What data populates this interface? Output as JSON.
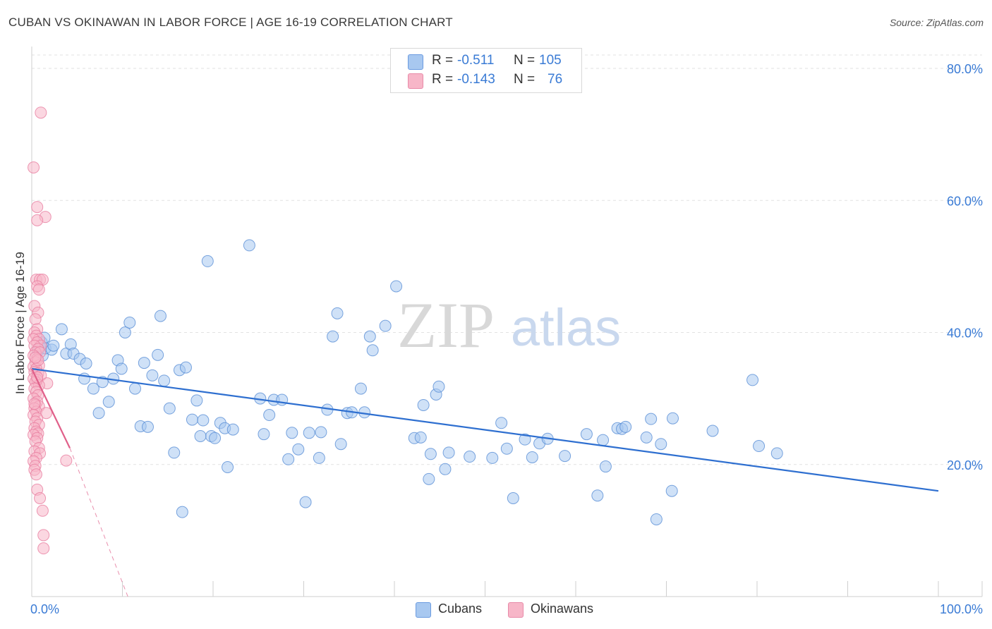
{
  "header": {
    "title": "CUBAN VS OKINAWAN IN LABOR FORCE | AGE 16-19 CORRELATION CHART",
    "source": "Source: ZipAtlas.com"
  },
  "watermark": {
    "zip": "ZIP",
    "atlas": "atlas"
  },
  "legend": {
    "rows": [
      {
        "r_label": "R =",
        "r_value": "-0.511",
        "n_label": "N =",
        "n_value": "105",
        "color": "#a8c8f0"
      },
      {
        "r_label": "R =",
        "r_value": "-0.143",
        "n_label": "N =",
        "n_value": "76",
        "color": "#f7b6c8"
      }
    ]
  },
  "bottom_legend": [
    {
      "label": "Cubans",
      "color": "#a8c8f0"
    },
    {
      "label": "Okinawans",
      "color": "#f7b6c8"
    }
  ],
  "chart_data": {
    "type": "scatter",
    "title": "CUBAN VS OKINAWAN IN LABOR FORCE | AGE 16-19 CORRELATION CHART",
    "xlabel": "",
    "ylabel": "In Labor Force | Age 16-19",
    "xlim": [
      0,
      100
    ],
    "ylim": [
      0,
      82
    ],
    "x_tick_labels": [
      "0.0%",
      "100.0%"
    ],
    "y_ticks": [
      20,
      40,
      60,
      80
    ],
    "y_tick_labels": [
      "20.0%",
      "40.0%",
      "60.0%",
      "80.0%"
    ],
    "grid": true,
    "series": [
      {
        "name": "Cubans",
        "color": "#a8c8f0",
        "stroke": "#5a8fd6",
        "line_color": "#2e6fd0",
        "trend": {
          "x": [
            0,
            100
          ],
          "y": [
            34.5,
            16.0
          ]
        },
        "points": [
          [
            0.7,
            37.2
          ],
          [
            0.9,
            37.8
          ],
          [
            1.1,
            38.5
          ],
          [
            1.2,
            36.5
          ],
          [
            1.4,
            39.2
          ],
          [
            1.5,
            37.6
          ],
          [
            2.2,
            37.4
          ],
          [
            2.4,
            38.0
          ],
          [
            3.3,
            40.5
          ],
          [
            3.8,
            36.8
          ],
          [
            4.3,
            38.2
          ],
          [
            4.6,
            36.8
          ],
          [
            5.3,
            36.0
          ],
          [
            5.8,
            33.0
          ],
          [
            6.0,
            35.3
          ],
          [
            6.8,
            31.5
          ],
          [
            7.4,
            27.8
          ],
          [
            7.8,
            32.5
          ],
          [
            8.5,
            29.5
          ],
          [
            9.0,
            33.0
          ],
          [
            9.5,
            35.8
          ],
          [
            9.9,
            34.5
          ],
          [
            10.3,
            40.0
          ],
          [
            10.8,
            41.5
          ],
          [
            11.4,
            31.5
          ],
          [
            12.0,
            25.8
          ],
          [
            12.4,
            35.4
          ],
          [
            12.8,
            25.7
          ],
          [
            13.3,
            33.5
          ],
          [
            13.9,
            36.6
          ],
          [
            14.2,
            42.5
          ],
          [
            14.6,
            32.7
          ],
          [
            15.2,
            28.5
          ],
          [
            15.7,
            21.8
          ],
          [
            16.3,
            34.3
          ],
          [
            16.6,
            12.8
          ],
          [
            17.0,
            34.7
          ],
          [
            17.7,
            26.8
          ],
          [
            18.2,
            29.7
          ],
          [
            18.9,
            26.7
          ],
          [
            19.4,
            50.8
          ],
          [
            19.8,
            24.3
          ],
          [
            20.2,
            24.0
          ],
          [
            20.8,
            26.3
          ],
          [
            21.3,
            25.5
          ],
          [
            21.6,
            19.6
          ],
          [
            22.2,
            25.3
          ],
          [
            24.0,
            53.2
          ],
          [
            25.2,
            30.0
          ],
          [
            25.6,
            24.6
          ],
          [
            26.2,
            27.5
          ],
          [
            26.7,
            29.8
          ],
          [
            27.6,
            29.8
          ],
          [
            28.3,
            20.8
          ],
          [
            28.7,
            24.8
          ],
          [
            29.4,
            22.3
          ],
          [
            30.2,
            14.3
          ],
          [
            30.6,
            24.8
          ],
          [
            31.7,
            21.0
          ],
          [
            31.9,
            24.9
          ],
          [
            32.6,
            28.3
          ],
          [
            33.2,
            39.4
          ],
          [
            33.7,
            42.9
          ],
          [
            34.1,
            23.1
          ],
          [
            34.8,
            27.8
          ],
          [
            35.3,
            27.9
          ],
          [
            36.3,
            31.5
          ],
          [
            37.3,
            39.4
          ],
          [
            37.6,
            37.3
          ],
          [
            40.2,
            47.0
          ],
          [
            42.2,
            24.0
          ],
          [
            42.9,
            24.1
          ],
          [
            43.2,
            29.0
          ],
          [
            43.8,
            17.8
          ],
          [
            44.0,
            21.6
          ],
          [
            44.6,
            30.6
          ],
          [
            44.9,
            31.8
          ],
          [
            45.6,
            19.3
          ],
          [
            46.0,
            21.8
          ],
          [
            48.3,
            21.2
          ],
          [
            50.8,
            21.0
          ],
          [
            51.8,
            26.3
          ],
          [
            52.4,
            22.4
          ],
          [
            53.1,
            14.9
          ],
          [
            54.4,
            23.8
          ],
          [
            55.2,
            21.1
          ],
          [
            56.0,
            23.2
          ],
          [
            56.9,
            23.9
          ],
          [
            58.8,
            21.3
          ],
          [
            61.2,
            24.6
          ],
          [
            62.4,
            15.3
          ],
          [
            63.0,
            23.7
          ],
          [
            63.3,
            19.7
          ],
          [
            64.6,
            25.5
          ],
          [
            65.1,
            25.4
          ],
          [
            65.5,
            25.7
          ],
          [
            67.8,
            24.1
          ],
          [
            68.3,
            26.9
          ],
          [
            68.9,
            11.7
          ],
          [
            69.4,
            23.1
          ],
          [
            70.6,
            16.0
          ],
          [
            70.7,
            27.0
          ],
          [
            75.1,
            25.1
          ],
          [
            79.5,
            32.8
          ],
          [
            80.2,
            22.8
          ],
          [
            82.2,
            21.7
          ],
          [
            18.6,
            24.3
          ],
          [
            36.7,
            27.9
          ],
          [
            39.0,
            41.0
          ]
        ]
      },
      {
        "name": "Okinawans",
        "color": "#f7b6c8",
        "stroke": "#e87ea0",
        "line_color": "#e0608a",
        "trend": {
          "x": [
            0,
            4.2
          ],
          "y": [
            34.5,
            22.5
          ]
        },
        "trend_dashed": {
          "x": [
            4.2,
            10.6
          ],
          "y": [
            22.5,
            0
          ]
        },
        "points": [
          [
            1.0,
            73.3
          ],
          [
            0.2,
            65.0
          ],
          [
            0.6,
            59.0
          ],
          [
            1.5,
            57.5
          ],
          [
            0.6,
            57.0
          ],
          [
            0.5,
            48.0
          ],
          [
            0.9,
            48.0
          ],
          [
            1.2,
            48.0
          ],
          [
            0.6,
            47.0
          ],
          [
            0.8,
            46.5
          ],
          [
            0.3,
            44.0
          ],
          [
            0.7,
            43.0
          ],
          [
            0.4,
            42.0
          ],
          [
            0.6,
            40.5
          ],
          [
            0.3,
            40.0
          ],
          [
            0.5,
            39.5
          ],
          [
            0.8,
            39.0
          ],
          [
            0.2,
            39.0
          ],
          [
            0.6,
            38.5
          ],
          [
            1.0,
            38.0
          ],
          [
            0.3,
            38.0
          ],
          [
            0.7,
            37.5
          ],
          [
            0.4,
            37.0
          ],
          [
            0.9,
            37.0
          ],
          [
            0.2,
            36.5
          ],
          [
            0.6,
            36.0
          ],
          [
            0.4,
            35.5
          ],
          [
            0.8,
            35.0
          ],
          [
            0.2,
            34.8
          ],
          [
            0.5,
            34.5
          ],
          [
            0.3,
            34.0
          ],
          [
            0.7,
            33.8
          ],
          [
            1.0,
            33.5
          ],
          [
            0.2,
            33.0
          ],
          [
            0.6,
            32.8
          ],
          [
            0.4,
            32.5
          ],
          [
            1.7,
            32.3
          ],
          [
            0.8,
            32.0
          ],
          [
            0.3,
            31.5
          ],
          [
            0.5,
            31.0
          ],
          [
            0.7,
            30.5
          ],
          [
            0.2,
            30.0
          ],
          [
            0.6,
            29.5
          ],
          [
            0.4,
            29.0
          ],
          [
            0.8,
            28.8
          ],
          [
            0.3,
            28.5
          ],
          [
            0.5,
            28.0
          ],
          [
            1.6,
            27.8
          ],
          [
            0.2,
            27.5
          ],
          [
            0.6,
            27.0
          ],
          [
            0.4,
            26.5
          ],
          [
            0.8,
            26.0
          ],
          [
            0.3,
            25.5
          ],
          [
            0.5,
            25.0
          ],
          [
            0.7,
            24.7
          ],
          [
            0.2,
            24.5
          ],
          [
            0.6,
            24.0
          ],
          [
            0.4,
            23.5
          ],
          [
            0.8,
            22.5
          ],
          [
            0.3,
            22.0
          ],
          [
            0.9,
            21.7
          ],
          [
            0.5,
            21.0
          ],
          [
            0.2,
            20.5
          ],
          [
            0.4,
            19.8
          ],
          [
            0.3,
            19.2
          ],
          [
            3.8,
            20.6
          ],
          [
            0.6,
            16.2
          ],
          [
            0.9,
            14.9
          ],
          [
            1.2,
            13.0
          ],
          [
            1.3,
            9.3
          ],
          [
            1.3,
            7.3
          ],
          [
            0.5,
            18.5
          ],
          [
            0.7,
            35.8
          ],
          [
            0.4,
            36.2
          ],
          [
            0.6,
            33.2
          ],
          [
            0.3,
            29.2
          ]
        ]
      }
    ]
  }
}
